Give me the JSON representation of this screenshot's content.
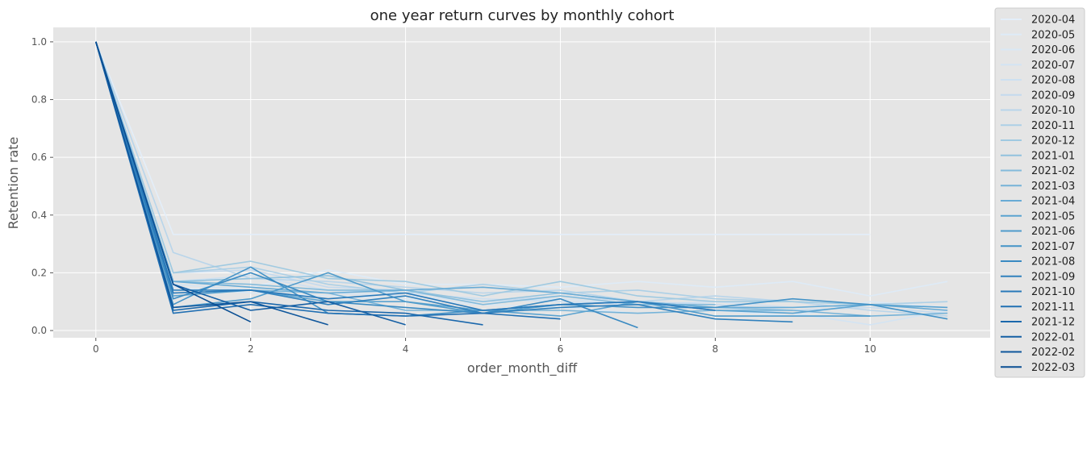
{
  "chart_data": {
    "type": "line",
    "title": "one  year return curves by monthly cohort",
    "xlabel": "order_month_diff",
    "ylabel": "Retention rate",
    "xlim": [
      -0.55,
      11.55
    ],
    "ylim": [
      -0.025,
      1.05
    ],
    "xticks": [
      0,
      2,
      4,
      6,
      8,
      10
    ],
    "yticks": [
      0.0,
      0.2,
      0.4,
      0.6,
      0.8,
      1.0
    ],
    "grid": true,
    "legend_position": "outside-right",
    "colormap": "Blues",
    "series": [
      {
        "name": "2020-04",
        "color": "#e3eef9",
        "x": [
          0,
          1,
          2,
          3,
          4,
          5,
          6,
          7,
          8,
          9,
          10
        ],
        "y": [
          1.0,
          0.333,
          0.333,
          0.333,
          0.333,
          0.333,
          0.333,
          0.333,
          0.333,
          0.333,
          0.333
        ]
      },
      {
        "name": "2020-05",
        "color": "#deebf7",
        "x": [
          0,
          1,
          2,
          3,
          4,
          5,
          6,
          7,
          8,
          9,
          10,
          11
        ],
        "y": [
          1.0,
          0.17,
          0.15,
          0.21,
          0.16,
          0.16,
          0.15,
          0.17,
          0.15,
          0.17,
          0.12,
          0.17
        ]
      },
      {
        "name": "2020-06",
        "color": "#d9e8f5",
        "x": [
          0,
          1,
          2,
          3,
          4,
          5,
          6,
          7,
          8,
          9,
          10,
          11
        ],
        "y": [
          1.0,
          0.15,
          0.13,
          0.12,
          0.11,
          0.09,
          0.08,
          0.06,
          0.07,
          0.05,
          0.1,
          0.08
        ]
      },
      {
        "name": "2020-07",
        "color": "#d3e4f3",
        "x": [
          0,
          1,
          2,
          3,
          4,
          5,
          6,
          7,
          8,
          9,
          10,
          11
        ],
        "y": [
          1.0,
          0.16,
          0.14,
          0.13,
          0.12,
          0.1,
          0.11,
          0.09,
          0.08,
          0.06,
          0.02,
          0.07
        ]
      },
      {
        "name": "2020-08",
        "color": "#cde0f1",
        "x": [
          0,
          1,
          2,
          3,
          4,
          5,
          6,
          7,
          8,
          9,
          10,
          11
        ],
        "y": [
          1.0,
          0.17,
          0.19,
          0.14,
          0.13,
          0.11,
          0.1,
          0.09,
          0.1,
          0.08,
          0.09,
          0.1
        ]
      },
      {
        "name": "2020-09",
        "color": "#c4daee",
        "x": [
          0,
          1,
          2,
          3,
          4,
          5,
          6,
          7,
          8,
          9,
          10,
          11
        ],
        "y": [
          1.0,
          0.2,
          0.21,
          0.15,
          0.14,
          0.1,
          0.12,
          0.1,
          0.09,
          0.07,
          0.08,
          0.06
        ]
      },
      {
        "name": "2020-10",
        "color": "#b9d5ea",
        "x": [
          0,
          1,
          2,
          3,
          4,
          5,
          6,
          7,
          8,
          9,
          10,
          11
        ],
        "y": [
          1.0,
          0.27,
          0.18,
          0.17,
          0.15,
          0.13,
          0.14,
          0.1,
          0.12,
          0.1,
          0.07,
          0.05
        ]
      },
      {
        "name": "2020-11",
        "color": "#add0e6",
        "x": [
          0,
          1,
          2,
          3,
          4,
          5,
          6,
          7,
          8,
          9,
          10,
          11
        ],
        "y": [
          1.0,
          0.2,
          0.22,
          0.16,
          0.13,
          0.16,
          0.13,
          0.14,
          0.11,
          0.1,
          0.09,
          0.1
        ]
      },
      {
        "name": "2020-12",
        "color": "#a0cae1",
        "x": [
          0,
          1,
          2,
          3,
          4,
          5,
          6,
          7,
          8,
          9,
          10
        ],
        "y": [
          1.0,
          0.2,
          0.24,
          0.18,
          0.17,
          0.12,
          0.17,
          0.12,
          0.1,
          0.1,
          0.09
        ]
      },
      {
        "name": "2021-01",
        "color": "#92c2de",
        "x": [
          0,
          1,
          2,
          3,
          4,
          5,
          6,
          7,
          8,
          9
        ],
        "y": [
          1.0,
          0.17,
          0.18,
          0.19,
          0.14,
          0.1,
          0.13,
          0.1,
          0.08,
          0.07
        ]
      },
      {
        "name": "2021-02",
        "color": "#84bbdb",
        "x": [
          0,
          1,
          2,
          3,
          4,
          5,
          6,
          7,
          8
        ],
        "y": [
          1.0,
          0.17,
          0.16,
          0.14,
          0.14,
          0.09,
          0.12,
          0.09,
          0.09
        ]
      },
      {
        "name": "2021-03",
        "color": "#76b3d8",
        "x": [
          0,
          1,
          2,
          3,
          4,
          5,
          6,
          7,
          8,
          9,
          10,
          11
        ],
        "y": [
          1.0,
          0.13,
          0.14,
          0.13,
          0.07,
          0.07,
          0.07,
          0.06,
          0.07,
          0.07,
          0.05,
          0.06
        ]
      },
      {
        "name": "2021-04",
        "color": "#68abd5",
        "x": [
          0,
          1,
          2,
          3,
          4,
          5,
          6,
          7,
          8,
          9,
          10,
          11
        ],
        "y": [
          1.0,
          0.17,
          0.15,
          0.13,
          0.14,
          0.15,
          0.13,
          0.1,
          0.08,
          0.08,
          0.09,
          0.07
        ]
      },
      {
        "name": "2021-05",
        "color": "#5ba3d0",
        "x": [
          0,
          1,
          2,
          3,
          4,
          5,
          6,
          7,
          8,
          9,
          10,
          11
        ],
        "y": [
          1.0,
          0.12,
          0.14,
          0.1,
          0.1,
          0.07,
          0.05,
          0.1,
          0.07,
          0.06,
          0.09,
          0.08
        ]
      },
      {
        "name": "2021-06",
        "color": "#4f9bcb",
        "x": [
          0,
          1,
          2,
          3,
          4,
          5,
          6,
          7,
          8,
          9,
          10
        ],
        "y": [
          1.0,
          0.08,
          0.11,
          0.2,
          0.1,
          0.06,
          0.09,
          0.1,
          0.05,
          0.05,
          0.05
        ]
      },
      {
        "name": "2021-07",
        "color": "#4493c7",
        "x": [
          0,
          1,
          2,
          3,
          4,
          5,
          6,
          7,
          8,
          9,
          10,
          11
        ],
        "y": [
          1.0,
          0.09,
          0.22,
          0.06,
          0.05,
          0.07,
          0.09,
          0.08,
          0.08,
          0.11,
          0.09,
          0.04
        ]
      },
      {
        "name": "2021-08",
        "color": "#3a8ac2",
        "x": [
          0,
          1,
          2,
          3,
          4,
          5,
          6,
          7
        ],
        "y": [
          1.0,
          0.11,
          0.2,
          0.1,
          0.08,
          0.06,
          0.11,
          0.01
        ]
      },
      {
        "name": "2021-09",
        "color": "#3181bd",
        "x": [
          0,
          1,
          2,
          3,
          4,
          5,
          6,
          7,
          8,
          9
        ],
        "y": [
          1.0,
          0.14,
          0.14,
          0.09,
          0.12,
          0.06,
          0.08,
          0.09,
          0.04,
          0.03
        ]
      },
      {
        "name": "2021-10",
        "color": "#2979b9",
        "x": [
          0,
          1,
          2,
          3,
          4,
          5,
          6,
          7,
          8
        ],
        "y": [
          1.0,
          0.13,
          0.14,
          0.11,
          0.13,
          0.07,
          0.09,
          0.1,
          0.07
        ]
      },
      {
        "name": "2021-11",
        "color": "#2270b3",
        "x": [
          0,
          1,
          2,
          3,
          4,
          5,
          6
        ],
        "y": [
          1.0,
          0.06,
          0.09,
          0.06,
          0.05,
          0.06,
          0.04
        ]
      },
      {
        "name": "2021-12",
        "color": "#1b68ac",
        "x": [
          0,
          1,
          2,
          3,
          4,
          5
        ],
        "y": [
          1.0,
          0.07,
          0.1,
          0.07,
          0.06,
          0.02
        ]
      },
      {
        "name": "2022-01",
        "color": "#155fa4",
        "x": [
          0,
          1,
          2,
          3,
          4
        ],
        "y": [
          1.0,
          0.16,
          0.07,
          0.1,
          0.02
        ]
      },
      {
        "name": "2022-02",
        "color": "#10579c",
        "x": [
          0,
          1,
          2,
          3
        ],
        "y": [
          1.0,
          0.08,
          0.1,
          0.02
        ]
      },
      {
        "name": "2022-03",
        "color": "#0b4f93",
        "x": [
          0,
          1,
          2
        ],
        "y": [
          1.0,
          0.16,
          0.03
        ]
      }
    ]
  }
}
